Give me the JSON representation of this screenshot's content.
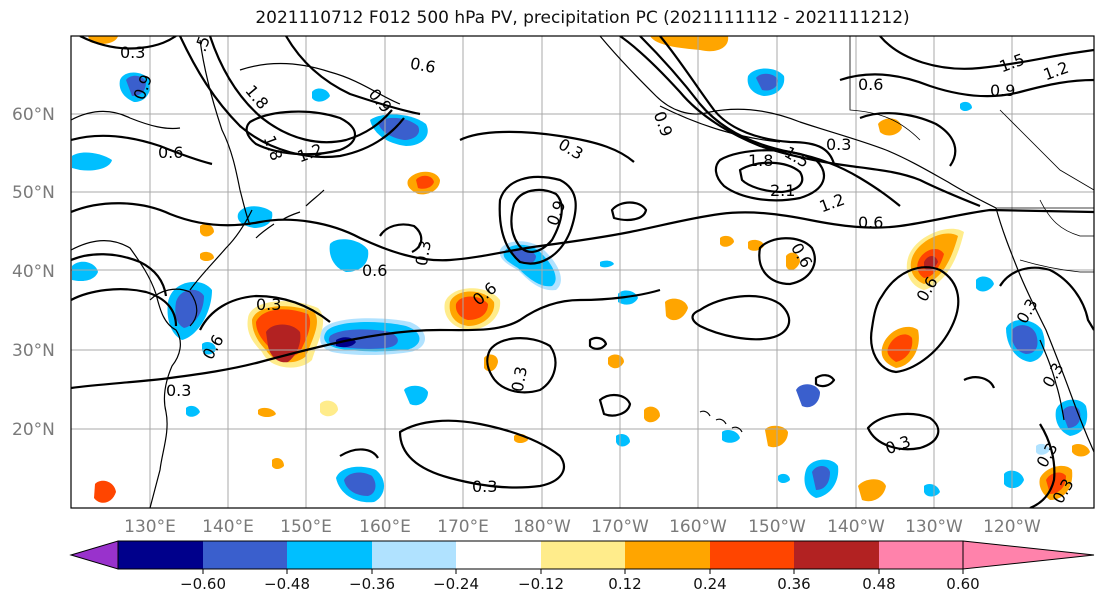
{
  "title": "2021110712 F012 500 hPa PV, precipitation PC (2021111112 - 2021111212)",
  "lat_labels": [
    "60°N",
    "50°N",
    "40°N",
    "30°N",
    "20°N"
  ],
  "lon_labels": [
    "130°E",
    "140°E",
    "150°E",
    "160°E",
    "170°E",
    "180°W",
    "170°W",
    "160°W",
    "150°W",
    "140°W",
    "130°W",
    "120°W"
  ],
  "colorbar": {
    "ticks": [
      "−0.60",
      "−0.48",
      "−0.36",
      "−0.24",
      "−0.12",
      "0.12",
      "0.24",
      "0.36",
      "0.48",
      "0.60"
    ],
    "colors": [
      "#9932CC",
      "#00008B",
      "#3A5FCD",
      "#00BFFF",
      "#B0E2FF",
      "#FFFFFF",
      "#FFEC8B",
      "#FFA500",
      "#FF4500",
      "#B22222",
      "#FF82AB"
    ]
  },
  "contour_labels": [
    "0.3",
    "0.6",
    "0.9",
    "1.2",
    "1.5",
    "1.8",
    "2.1"
  ]
}
